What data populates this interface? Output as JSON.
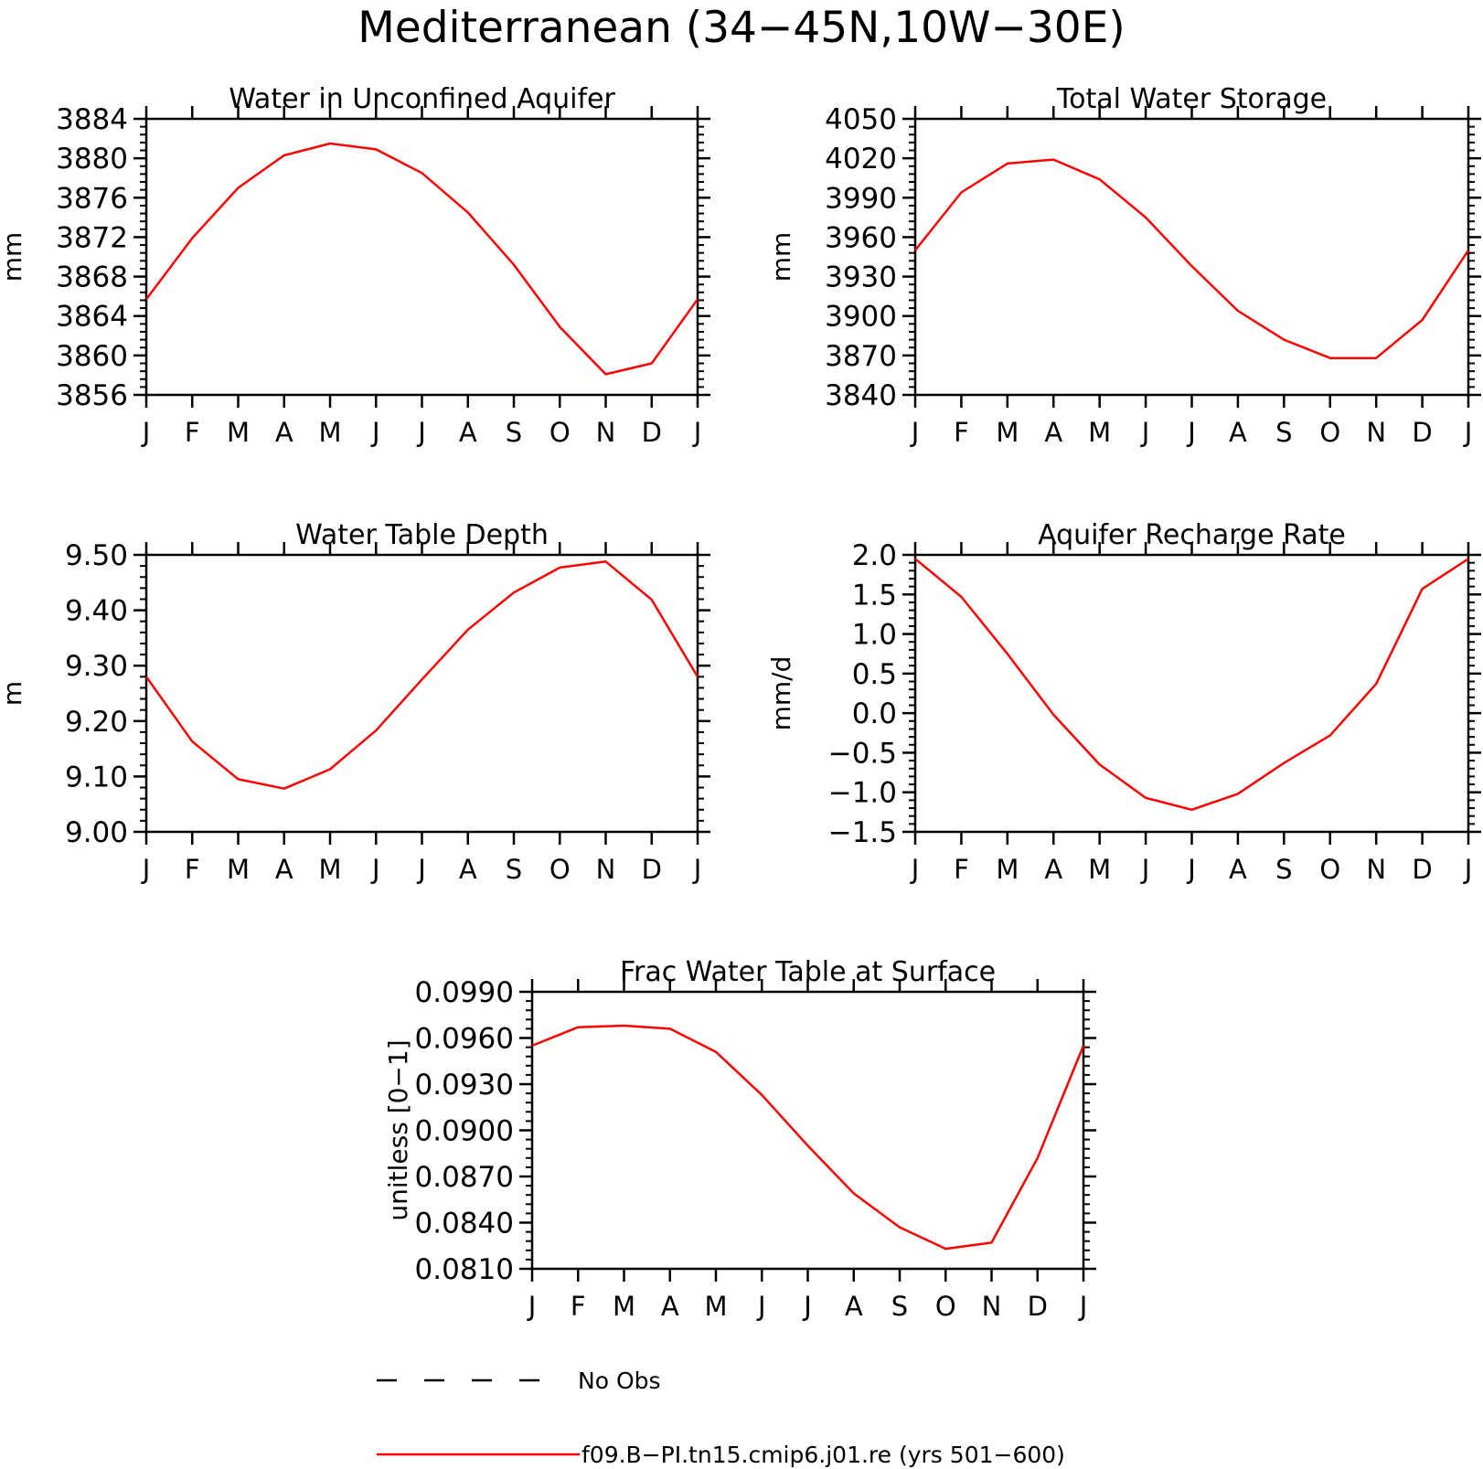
{
  "figure": {
    "title": "Mediterranean (34−45N,10W−30E)",
    "colors": {
      "model_line": "#ff0000",
      "axes": "#000000"
    }
  },
  "legend": [
    {
      "label": "No Obs",
      "style": "dashed",
      "color": "#000000"
    },
    {
      "label": "f09.B−PI.tn15.cmip6.j01.re (yrs 501−600)",
      "style": "solid",
      "color": "#ff0000"
    }
  ],
  "chart_data": [
    {
      "type": "line",
      "title": "Water in Unconfined Aquifer",
      "ylabel": "mm",
      "categories": [
        "J",
        "F",
        "M",
        "A",
        "M",
        "J",
        "J",
        "A",
        "S",
        "O",
        "N",
        "D",
        "J"
      ],
      "ylim": [
        3856,
        3884
      ],
      "yticks": [
        3856,
        3860,
        3864,
        3868,
        3872,
        3876,
        3880,
        3884
      ],
      "ytick_labels": [
        "3856",
        "3860",
        "3864",
        "3868",
        "3872",
        "3876",
        "3880",
        "3884"
      ],
      "series": [
        {
          "values": [
            3865.7,
            3871.9,
            3877.0,
            3880.3,
            3881.5,
            3880.9,
            3878.5,
            3874.5,
            3869.2,
            3862.9,
            3858.1,
            3859.2,
            3865.7
          ]
        }
      ]
    },
    {
      "type": "line",
      "title": "Total Water Storage",
      "ylabel": "mm",
      "categories": [
        "J",
        "F",
        "M",
        "A",
        "M",
        "J",
        "J",
        "A",
        "S",
        "O",
        "N",
        "D",
        "J"
      ],
      "ylim": [
        3840,
        4050
      ],
      "yticks": [
        3840,
        3870,
        3900,
        3930,
        3960,
        3990,
        4020,
        4050
      ],
      "ytick_labels": [
        "3840",
        "3870",
        "3900",
        "3930",
        "3960",
        "3990",
        "4020",
        "4050"
      ],
      "series": [
        {
          "values": [
            3950,
            3994,
            4016,
            4019,
            4004,
            3975,
            3938,
            3904,
            3882,
            3868,
            3868,
            3897,
            3950
          ]
        }
      ]
    },
    {
      "type": "line",
      "title": "Water Table Depth",
      "ylabel": "m",
      "categories": [
        "J",
        "F",
        "M",
        "A",
        "M",
        "J",
        "J",
        "A",
        "S",
        "O",
        "N",
        "D",
        "J"
      ],
      "ylim": [
        9.0,
        9.5
      ],
      "yticks": [
        9.0,
        9.1,
        9.2,
        9.3,
        9.4,
        9.5
      ],
      "ytick_labels": [
        "9.00",
        "9.10",
        "9.20",
        "9.30",
        "9.40",
        "9.50"
      ],
      "series": [
        {
          "values": [
            9.28,
            9.163,
            9.095,
            9.078,
            9.113,
            9.183,
            9.275,
            9.365,
            9.432,
            9.477,
            9.488,
            9.419,
            9.28
          ]
        }
      ]
    },
    {
      "type": "line",
      "title": "Aquifer Recharge Rate",
      "ylabel": "mm/d",
      "categories": [
        "J",
        "F",
        "M",
        "A",
        "M",
        "J",
        "J",
        "A",
        "S",
        "O",
        "N",
        "D",
        "J"
      ],
      "ylim": [
        -1.5,
        2.0
      ],
      "yticks": [
        -1.5,
        -1.0,
        -0.5,
        0.0,
        0.5,
        1.0,
        1.5,
        2.0
      ],
      "ytick_labels": [
        "−1.5",
        "−1.0",
        "−0.5",
        "0.0",
        "0.5",
        "1.0",
        "1.5",
        "2.0"
      ],
      "series": [
        {
          "values": [
            1.95,
            1.47,
            0.75,
            -0.02,
            -0.65,
            -1.07,
            -1.22,
            -1.02,
            -0.63,
            -0.28,
            0.37,
            1.57,
            1.95
          ]
        }
      ]
    },
    {
      "type": "line",
      "title": "Frac Water Table at Surface",
      "ylabel": "unitless [0−1]",
      "categories": [
        "J",
        "F",
        "M",
        "A",
        "M",
        "J",
        "J",
        "A",
        "S",
        "O",
        "N",
        "D",
        "J"
      ],
      "ylim": [
        0.081,
        0.099
      ],
      "yticks": [
        0.081,
        0.084,
        0.087,
        0.09,
        0.093,
        0.096,
        0.099
      ],
      "ytick_labels": [
        "0.0810",
        "0.0840",
        "0.0870",
        "0.0900",
        "0.0930",
        "0.0960",
        "0.0990"
      ],
      "series": [
        {
          "values": [
            0.0955,
            0.0967,
            0.0968,
            0.0966,
            0.0951,
            0.0923,
            0.089,
            0.0859,
            0.0837,
            0.0823,
            0.0827,
            0.0882,
            0.0955
          ]
        }
      ]
    }
  ]
}
